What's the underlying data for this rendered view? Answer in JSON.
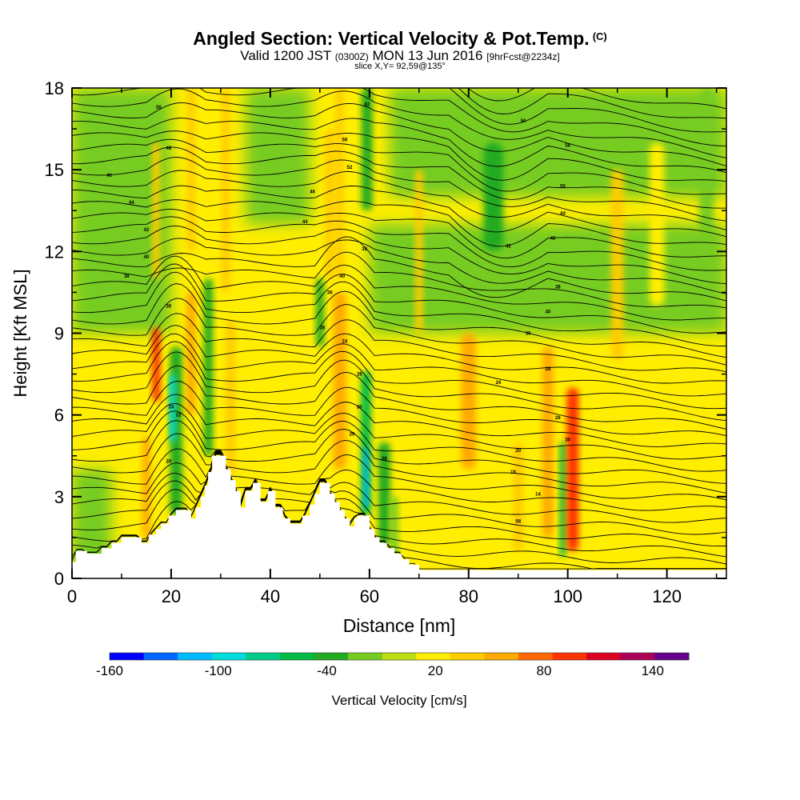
{
  "header": {
    "title": "Angled Section: Vertical Velocity & Pot.Temp.",
    "copyright": "(C)",
    "valid_prefix": "Valid 1200 JST",
    "valid_utc": "(0300Z)",
    "valid_date": "MON 13 Jun 2016",
    "forecast": "[9hrFcst@2234z]",
    "slice": "slice X,Y= 92,59@135°"
  },
  "chart_data": {
    "type": "heatmap",
    "xlabel": "Distance [nm]",
    "ylabel": "Height [Kft MSL]",
    "xlim": [
      0,
      132
    ],
    "ylim": [
      0,
      18
    ],
    "x_ticks": [
      0,
      20,
      40,
      60,
      80,
      100,
      120
    ],
    "y_ticks": [
      0,
      3,
      6,
      9,
      12,
      15,
      18
    ],
    "colorbar": {
      "label": "Vertical Velocity [cm/s]",
      "min": -160,
      "max": 160,
      "step": 20,
      "tick_labels": [
        "-160",
        "-100",
        "-40",
        "20",
        "80",
        "140"
      ],
      "tick_values": [
        -160,
        -100,
        -40,
        20,
        80,
        140
      ],
      "colors": [
        "#0000ff",
        "#0066ff",
        "#00bbff",
        "#00dddd",
        "#00cc88",
        "#00bb44",
        "#22aa22",
        "#77cc22",
        "#bbdd11",
        "#ffee00",
        "#ffcc00",
        "#ffaa00",
        "#ff6600",
        "#ff3300",
        "#dd0022",
        "#aa0055",
        "#660088"
      ]
    },
    "terrain_profile": [
      [
        0,
        0.6
      ],
      [
        0.8,
        0.6
      ],
      [
        0.8,
        1.0
      ],
      [
        3,
        1.0
      ],
      [
        3,
        0.9
      ],
      [
        6,
        0.9
      ],
      [
        6,
        1.1
      ],
      [
        8,
        1.1
      ],
      [
        8,
        1.3
      ],
      [
        10,
        1.3
      ],
      [
        10,
        1.5
      ],
      [
        14,
        1.5
      ],
      [
        14,
        1.3
      ],
      [
        15.5,
        1.3
      ],
      [
        15.5,
        1.6
      ],
      [
        17,
        1.6
      ],
      [
        17,
        1.8
      ],
      [
        18,
        1.8
      ],
      [
        18,
        2.0
      ],
      [
        19.5,
        2.0
      ],
      [
        19.5,
        2.3
      ],
      [
        21,
        2.3
      ],
      [
        21,
        2.5
      ],
      [
        24,
        2.5
      ],
      [
        24,
        2.2
      ],
      [
        25,
        2.2
      ],
      [
        25,
        2.6
      ],
      [
        26,
        2.6
      ],
      [
        26,
        3.0
      ],
      [
        26.8,
        3.0
      ],
      [
        26.8,
        3.4
      ],
      [
        27.5,
        3.4
      ],
      [
        27.5,
        3.9
      ],
      [
        28.3,
        3.9
      ],
      [
        28.3,
        4.5
      ],
      [
        31,
        4.5
      ],
      [
        31,
        4.0
      ],
      [
        32,
        4.0
      ],
      [
        32,
        3.6
      ],
      [
        33,
        3.6
      ],
      [
        33,
        3.2
      ],
      [
        34,
        3.2
      ],
      [
        34,
        2.6
      ],
      [
        35,
        2.6
      ],
      [
        35,
        3.2
      ],
      [
        36.5,
        3.2
      ],
      [
        36.5,
        3.5
      ],
      [
        38,
        3.5
      ],
      [
        38,
        2.8
      ],
      [
        39.5,
        2.8
      ],
      [
        39.5,
        3.2
      ],
      [
        41,
        3.2
      ],
      [
        41,
        2.6
      ],
      [
        42.5,
        2.6
      ],
      [
        42.5,
        2.2
      ],
      [
        44,
        2.2
      ],
      [
        44,
        2.0
      ],
      [
        46.5,
        2.0
      ],
      [
        46.5,
        2.3
      ],
      [
        48,
        2.3
      ],
      [
        48,
        2.7
      ],
      [
        49,
        2.7
      ],
      [
        49,
        3.1
      ],
      [
        50,
        3.1
      ],
      [
        50,
        3.5
      ],
      [
        52,
        3.5
      ],
      [
        52,
        3.1
      ],
      [
        53,
        3.1
      ],
      [
        53,
        2.8
      ],
      [
        54,
        2.8
      ],
      [
        54,
        2.5
      ],
      [
        55,
        2.5
      ],
      [
        55,
        2.2
      ],
      [
        56,
        2.2
      ],
      [
        56,
        1.9
      ],
      [
        57,
        1.9
      ],
      [
        57,
        2.2
      ],
      [
        57.5,
        2.2
      ],
      [
        57.5,
        2.3
      ],
      [
        60,
        2.3
      ],
      [
        60,
        1.8
      ],
      [
        61,
        1.8
      ],
      [
        61,
        1.5
      ],
      [
        62,
        1.5
      ],
      [
        62,
        1.3
      ],
      [
        63.5,
        1.3
      ],
      [
        63.5,
        1.1
      ],
      [
        65,
        1.1
      ],
      [
        65,
        0.9
      ],
      [
        66.5,
        0.9
      ],
      [
        66.5,
        0.7
      ],
      [
        68,
        0.7
      ],
      [
        68,
        0.5
      ],
      [
        70,
        0.5
      ],
      [
        70,
        0.3
      ],
      [
        132,
        0.3
      ]
    ],
    "potential_temperature_contours": {
      "units": "C",
      "labels": [
        {
          "x": 17.5,
          "y": 17.3,
          "text": "50"
        },
        {
          "x": 19.5,
          "y": 15.8,
          "text": "48"
        },
        {
          "x": 7.5,
          "y": 14.8,
          "text": "46"
        },
        {
          "x": 12,
          "y": 13.8,
          "text": "44"
        },
        {
          "x": 15,
          "y": 12.8,
          "text": "42"
        },
        {
          "x": 15,
          "y": 11.8,
          "text": "40"
        },
        {
          "x": 11,
          "y": 11.1,
          "text": "38"
        },
        {
          "x": 19.5,
          "y": 10.0,
          "text": "36"
        },
        {
          "x": 20,
          "y": 6.3,
          "text": "24"
        },
        {
          "x": 21.5,
          "y": 6.0,
          "text": "22"
        },
        {
          "x": 19.5,
          "y": 4.3,
          "text": "20"
        },
        {
          "x": 59.5,
          "y": 17.4,
          "text": "62"
        },
        {
          "x": 55,
          "y": 16.1,
          "text": "58"
        },
        {
          "x": 56,
          "y": 15.1,
          "text": "52"
        },
        {
          "x": 48.5,
          "y": 14.2,
          "text": "46"
        },
        {
          "x": 47,
          "y": 13.1,
          "text": "44"
        },
        {
          "x": 59,
          "y": 12.1,
          "text": "38"
        },
        {
          "x": 54.5,
          "y": 11.1,
          "text": "40"
        },
        {
          "x": 52,
          "y": 10.5,
          "text": "36"
        },
        {
          "x": 50.5,
          "y": 9.2,
          "text": "28"
        },
        {
          "x": 55,
          "y": 8.7,
          "text": "24"
        },
        {
          "x": 58,
          "y": 7.5,
          "text": "26"
        },
        {
          "x": 58,
          "y": 6.3,
          "text": "20"
        },
        {
          "x": 56.5,
          "y": 5.3,
          "text": "26"
        },
        {
          "x": 63,
          "y": 4.4,
          "text": "08"
        },
        {
          "x": 91,
          "y": 16.8,
          "text": "50"
        },
        {
          "x": 100,
          "y": 15.9,
          "text": "58"
        },
        {
          "x": 99,
          "y": 14.4,
          "text": "50"
        },
        {
          "x": 99,
          "y": 13.4,
          "text": "44"
        },
        {
          "x": 97,
          "y": 12.5,
          "text": "42"
        },
        {
          "x": 88,
          "y": 12.2,
          "text": "42"
        },
        {
          "x": 98,
          "y": 10.7,
          "text": "38"
        },
        {
          "x": 96,
          "y": 9.8,
          "text": "40"
        },
        {
          "x": 92,
          "y": 9.0,
          "text": "36"
        },
        {
          "x": 96,
          "y": 7.7,
          "text": "28"
        },
        {
          "x": 86,
          "y": 7.2,
          "text": "24"
        },
        {
          "x": 98,
          "y": 5.9,
          "text": "28"
        },
        {
          "x": 100,
          "y": 5.1,
          "text": "30"
        },
        {
          "x": 90,
          "y": 4.7,
          "text": "20"
        },
        {
          "x": 89,
          "y": 3.9,
          "text": "18"
        },
        {
          "x": 94,
          "y": 3.1,
          "text": "14"
        },
        {
          "x": 90,
          "y": 2.1,
          "text": "08"
        }
      ]
    },
    "velocity_features": [
      {
        "x": 15,
        "y0": 1.5,
        "y1": 5.2,
        "w": 1.6,
        "value": 60
      },
      {
        "x": 17,
        "y0": 6.5,
        "y1": 9.2,
        "w": 1.6,
        "value": 100
      },
      {
        "x": 21,
        "y0": 2.3,
        "y1": 8.5,
        "w": 2.5,
        "value": -40
      },
      {
        "x": 20.3,
        "y0": 5.0,
        "y1": 7.5,
        "w": 1.2,
        "value": -100
      },
      {
        "x": 24,
        "y0": 6.0,
        "y1": 10.5,
        "w": 1.8,
        "value": 50
      },
      {
        "x": 27.5,
        "y0": 4.5,
        "y1": 11.0,
        "w": 1.8,
        "value": -30
      },
      {
        "x": 32,
        "y0": 3.8,
        "y1": 9.5,
        "w": 1.8,
        "value": 40
      },
      {
        "x": 31,
        "y0": 10.5,
        "y1": 18.0,
        "w": 1.6,
        "value": 40
      },
      {
        "x": 24,
        "y0": 12.0,
        "y1": 18.0,
        "w": 1.6,
        "value": 30
      },
      {
        "x": 17,
        "y0": 11.0,
        "y1": 16.0,
        "w": 1.5,
        "value": 30
      },
      {
        "x": 50,
        "y0": 8.5,
        "y1": 11.0,
        "w": 1.6,
        "value": -30
      },
      {
        "x": 52,
        "y0": 11.0,
        "y1": 16.5,
        "w": 1.8,
        "value": 40
      },
      {
        "x": 54,
        "y0": 4.0,
        "y1": 10.5,
        "w": 2.6,
        "value": 60
      },
      {
        "x": 54,
        "y0": 11.0,
        "y1": 18.0,
        "w": 1.6,
        "value": 30
      },
      {
        "x": 59.3,
        "y0": 2.3,
        "y1": 7.6,
        "w": 2.0,
        "value": -50
      },
      {
        "x": 59.3,
        "y0": 2.6,
        "y1": 4.8,
        "w": 1.0,
        "value": -110
      },
      {
        "x": 59.5,
        "y0": 13.5,
        "y1": 18.0,
        "w": 2.2,
        "value": -40
      },
      {
        "x": 63,
        "y0": 1.2,
        "y1": 5.0,
        "w": 2.4,
        "value": -40
      },
      {
        "x": 65,
        "y0": 0.6,
        "y1": 3.0,
        "w": 1.6,
        "value": -25
      },
      {
        "x": 70,
        "y0": 9.0,
        "y1": 15.0,
        "w": 1.5,
        "value": 40
      },
      {
        "x": 80,
        "y0": 4.0,
        "y1": 9.0,
        "w": 3.0,
        "value": 50
      },
      {
        "x": 85,
        "y0": 12.0,
        "y1": 16.0,
        "w": 4.0,
        "value": -30
      },
      {
        "x": 90,
        "y0": 1.0,
        "y1": 5.0,
        "w": 2.0,
        "value": 40
      },
      {
        "x": 96,
        "y0": 1.5,
        "y1": 8.5,
        "w": 2.2,
        "value": 60
      },
      {
        "x": 99,
        "y0": 0.8,
        "y1": 5.0,
        "w": 1.2,
        "value": -50
      },
      {
        "x": 101,
        "y0": 1.0,
        "y1": 7.0,
        "w": 2.4,
        "value": 90
      },
      {
        "x": 110,
        "y0": 8.0,
        "y1": 15.0,
        "w": 2.5,
        "value": 30
      },
      {
        "x": 118,
        "y0": 10.0,
        "y1": 16.0,
        "w": 3.0,
        "value": 20
      },
      {
        "x": 128,
        "y0": 12.0,
        "y1": 18.0,
        "w": 3.0,
        "value": -25
      }
    ],
    "background_zones": [
      {
        "x0": 0,
        "x1": 132,
        "y0": 0,
        "y1": 18,
        "value": 10
      },
      {
        "x0": 0,
        "x1": 20,
        "y0": 9,
        "y1": 18,
        "value": -15
      },
      {
        "x0": 0,
        "x1": 8,
        "y0": 0,
        "y1": 4,
        "value": -10
      },
      {
        "x0": 64,
        "x1": 132,
        "y0": 14,
        "y1": 18,
        "value": -15
      },
      {
        "x0": 60,
        "x1": 132,
        "y0": 9,
        "y1": 13,
        "value": -12
      },
      {
        "x0": 35,
        "x1": 48,
        "y0": 13,
        "y1": 18,
        "value": -15
      }
    ]
  }
}
